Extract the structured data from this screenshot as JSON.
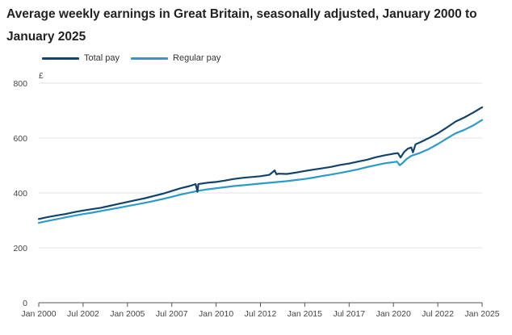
{
  "chart_data": {
    "type": "line",
    "title": "Average weekly earnings in Great Britain, seasonally adjusted, January 2000 to January 2025",
    "ylabel": "£",
    "xlabel": "",
    "ylim": [
      0,
      800
    ],
    "xlim": [
      2000.0,
      2025.0
    ],
    "yticks": [
      0,
      200,
      400,
      600,
      800
    ],
    "xticks": [
      {
        "label": "Jan 2000",
        "value": 2000.0
      },
      {
        "label": "Jul 2002",
        "value": 2002.5
      },
      {
        "label": "Jan 2005",
        "value": 2005.0
      },
      {
        "label": "Jul 2007",
        "value": 2007.5
      },
      {
        "label": "Jan 2010",
        "value": 2010.0
      },
      {
        "label": "Jul 2012",
        "value": 2012.5
      },
      {
        "label": "Jan 2015",
        "value": 2015.0
      },
      {
        "label": "Jul 2017",
        "value": 2017.5
      },
      {
        "label": "Jan 2020",
        "value": 2020.0
      },
      {
        "label": "Jul 2022",
        "value": 2022.5
      },
      {
        "label": "Jan 2025",
        "value": 2025.0
      }
    ],
    "grid": "horizontal",
    "legend": "top-left",
    "series": [
      {
        "name": "Total pay",
        "color": "#12436d",
        "x": [
          2000.0,
          2000.5,
          2001.0,
          2001.5,
          2002.0,
          2002.5,
          2003.0,
          2003.5,
          2004.0,
          2004.5,
          2005.0,
          2005.5,
          2006.0,
          2006.5,
          2007.0,
          2007.5,
          2008.0,
          2008.5,
          2008.85,
          2008.95,
          2009.0,
          2009.5,
          2010.0,
          2010.5,
          2011.0,
          2011.5,
          2012.0,
          2012.5,
          2013.0,
          2013.3,
          2013.4,
          2013.5,
          2014.0,
          2014.5,
          2015.0,
          2015.5,
          2016.0,
          2016.5,
          2017.0,
          2017.5,
          2018.0,
          2018.5,
          2019.0,
          2019.5,
          2020.0,
          2020.25,
          2020.4,
          2020.6,
          2020.8,
          2021.0,
          2021.1,
          2021.25,
          2021.5,
          2022.0,
          2022.5,
          2023.0,
          2023.5,
          2024.0,
          2024.5,
          2025.0
        ],
        "y": [
          305,
          312,
          318,
          323,
          330,
          336,
          341,
          346,
          353,
          360,
          367,
          374,
          381,
          389,
          397,
          407,
          417,
          425,
          432,
          404,
          432,
          437,
          440,
          445,
          451,
          455,
          458,
          461,
          466,
          482,
          468,
          470,
          469,
          474,
          480,
          485,
          490,
          495,
          502,
          507,
          514,
          521,
          530,
          537,
          543,
          545,
          529,
          549,
          561,
          566,
          548,
          577,
          584,
          600,
          617,
          638,
          660,
          675,
          693,
          712
        ]
      },
      {
        "name": "Regular pay",
        "color": "#2a9bcb",
        "x": [
          2000.0,
          2000.5,
          2001.0,
          2001.5,
          2002.0,
          2002.5,
          2003.0,
          2003.5,
          2004.0,
          2004.5,
          2005.0,
          2005.5,
          2006.0,
          2006.5,
          2007.0,
          2007.5,
          2008.0,
          2008.5,
          2009.0,
          2009.5,
          2010.0,
          2010.5,
          2011.0,
          2011.5,
          2012.0,
          2012.5,
          2013.0,
          2013.5,
          2014.0,
          2014.5,
          2015.0,
          2015.5,
          2016.0,
          2016.5,
          2017.0,
          2017.5,
          2018.0,
          2018.5,
          2019.0,
          2019.5,
          2020.0,
          2020.2,
          2020.35,
          2020.5,
          2020.75,
          2021.0,
          2021.5,
          2022.0,
          2022.5,
          2023.0,
          2023.5,
          2024.0,
          2024.5,
          2025.0
        ],
        "y": [
          291,
          298,
          304,
          311,
          317,
          323,
          328,
          334,
          340,
          346,
          352,
          358,
          364,
          371,
          378,
          386,
          394,
          401,
          408,
          413,
          417,
          421,
          425,
          428,
          431,
          434,
          437,
          440,
          443,
          447,
          451,
          456,
          462,
          467,
          473,
          479,
          486,
          494,
          501,
          508,
          512,
          514,
          501,
          508,
          524,
          535,
          546,
          560,
          578,
          598,
          617,
          630,
          646,
          666
        ]
      }
    ]
  }
}
